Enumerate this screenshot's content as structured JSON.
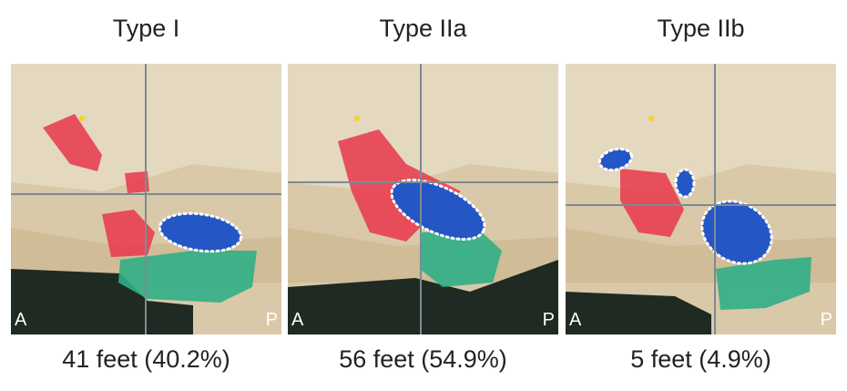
{
  "panels": [
    {
      "title": "Type I",
      "caption": "41 feet (40.2%)",
      "left_label": "A",
      "right_label": "P"
    },
    {
      "title": "Type IIa",
      "caption": "56 feet (54.9%)",
      "left_label": "A",
      "right_label": "P"
    },
    {
      "title": "Type IIb",
      "caption": "5 feet (4.9%)",
      "left_label": "A",
      "right_label": "P"
    }
  ]
}
